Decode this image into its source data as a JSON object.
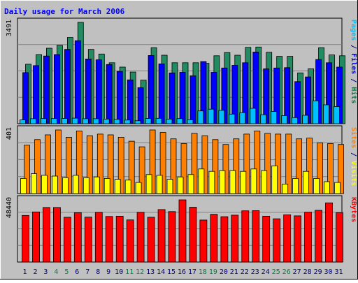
{
  "chart_data": {
    "type": "bar",
    "title": "Daily usage for March 2006",
    "categories": [
      "1",
      "2",
      "3",
      "4",
      "5",
      "6",
      "7",
      "8",
      "9",
      "10",
      "11",
      "12",
      "13",
      "14",
      "15",
      "16",
      "17",
      "18",
      "19",
      "20",
      "21",
      "22",
      "23",
      "24",
      "25",
      "26",
      "27",
      "28",
      "29",
      "30",
      "31"
    ],
    "weekend_days": [
      "4",
      "5",
      "11",
      "12",
      "18",
      "19",
      "25",
      "26"
    ],
    "panels": [
      {
        "name": "pages-files-hits",
        "max_label": "3491",
        "ylim": [
          0,
          3491
        ],
        "legend": [
          {
            "text": "Pages",
            "color": "#00c0ff"
          },
          {
            "text": " / ",
            "color": "#000080"
          },
          {
            "text": "Files",
            "color": "#0000ff"
          },
          {
            "text": " / ",
            "color": "#000080"
          },
          {
            "text": "Hits",
            "color": "#008040"
          }
        ],
        "series": [
          {
            "name": "Hits",
            "color": "#228b62",
            "values": [
              2050,
              2380,
              2600,
              2700,
              2970,
              3491,
              2560,
              2400,
              2100,
              1950,
              1780,
              1500,
              2620,
              2360,
              2100,
              2100,
              2100,
              2080,
              2340,
              2450,
              2360,
              2630,
              2640,
              2460,
              2320,
              2320,
              1750,
              1890,
              2620,
              2370,
              2340
            ]
          },
          {
            "name": "Files",
            "color": "#0000ff",
            "values": [
              1760,
              2000,
              2330,
              2380,
              2560,
              2860,
              2230,
              2200,
              2040,
              1800,
              1510,
              1240,
              2350,
              2060,
              1750,
              1770,
              1650,
              2140,
              1770,
              1920,
              2010,
              2100,
              2470,
              1890,
              1920,
              1930,
              1450,
              1610,
              2210,
              2100,
              1950
            ]
          },
          {
            "name": "Pages",
            "color": "#00c0ff",
            "values": [
              130,
              170,
              175,
              175,
              180,
              190,
              170,
              170,
              160,
              150,
              125,
              100,
              180,
              185,
              160,
              175,
              135,
              440,
              500,
              460,
              330,
              380,
              530,
              310,
              420,
              280,
              210,
              290,
              790,
              650,
              590
            ]
          }
        ]
      },
      {
        "name": "sites-visits",
        "max_label": "401",
        "ylim": [
          0,
          401
        ],
        "legend": [
          {
            "text": "Sites",
            "color": "#ff8000"
          },
          {
            "text": " / ",
            "color": "#000080"
          },
          {
            "text": "Visits",
            "color": "#ffff00"
          }
        ],
        "series": [
          {
            "name": "Sites",
            "color": "#ff8000",
            "values": [
              305,
              340,
              370,
              401,
              355,
              395,
              365,
              375,
              370,
              355,
              330,
              295,
              401,
              385,
              345,
              315,
              380,
              365,
              340,
              310,
              345,
              375,
              395,
              380,
              375,
              375,
              345,
              350,
              320,
              315,
              310
            ]
          },
          {
            "name": "Visits",
            "color": "#ffff00",
            "values": [
              95,
              125,
              115,
              110,
              100,
              115,
              100,
              105,
              95,
              90,
              85,
              70,
              120,
              115,
              90,
              105,
              120,
              155,
              140,
              145,
              145,
              140,
              155,
              145,
              175,
              60,
              95,
              140,
              95,
              75,
              70
            ]
          }
        ]
      },
      {
        "name": "kbytes",
        "max_label": "48440",
        "ylim": [
          0,
          48440
        ],
        "legend": [
          {
            "text": "KBytes",
            "color": "#ff0000"
          }
        ],
        "series": [
          {
            "name": "KBytes",
            "color": "#ff0000",
            "values": [
              36300,
              39000,
              42500,
              42500,
              34900,
              38400,
              35000,
              38700,
              35500,
              35700,
              32800,
              38700,
              34900,
              40900,
              39300,
              48440,
              42700,
              32700,
              37200,
              35300,
              36500,
              39900,
              40000,
              35700,
              33700,
              36800,
              36000,
              38800,
              40300,
              46100,
              38500
            ]
          }
        ]
      }
    ],
    "grid": true
  },
  "colors": {
    "frame_bg": "#c0c0c0",
    "plot_bg": "#c0c0c0",
    "grid": "#808080",
    "title": "#0000ff",
    "axis_label_weekday": "#000080",
    "axis_label_weekend": "#008040",
    "bar_outline": "#000000"
  }
}
